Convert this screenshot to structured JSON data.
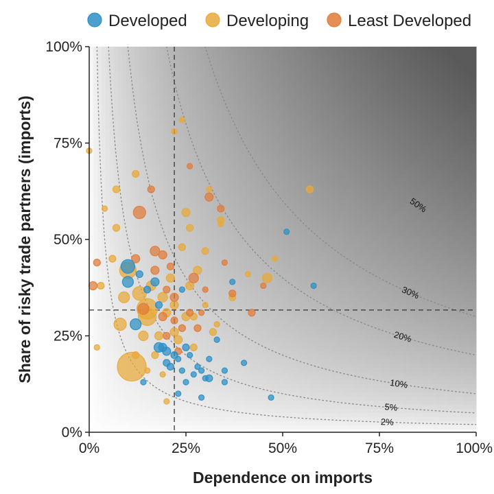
{
  "chart_data": {
    "type": "scatter",
    "xlabel": "Dependence on imports",
    "ylabel": "Share of risky trade partners (imports)",
    "xlim": [
      0,
      1
    ],
    "ylim": [
      0,
      1
    ],
    "x_ticks": [
      {
        "value": 0,
        "label": "0%"
      },
      {
        "value": 0.25,
        "label": "25%"
      },
      {
        "value": 0.5,
        "label": "50%"
      },
      {
        "value": 0.75,
        "label": "75%"
      },
      {
        "value": 1,
        "label": "100%"
      }
    ],
    "y_ticks": [
      {
        "value": 0,
        "label": "0%"
      },
      {
        "value": 0.25,
        "label": "25%"
      },
      {
        "value": 0.5,
        "label": "50%"
      },
      {
        "value": 0.75,
        "label": "75%"
      },
      {
        "value": 1,
        "label": "100%"
      }
    ],
    "legend_position": "top",
    "grid": false,
    "background": "gradient shading increasing with x × y product",
    "reference_lines": {
      "vertical_x": 0.22,
      "horizontal_y": 0.317,
      "style": "dashed"
    },
    "contours": [
      {
        "level": 0.02,
        "label": "2%"
      },
      {
        "level": 0.05,
        "label": "5%"
      },
      {
        "level": 0.1,
        "label": "10%"
      },
      {
        "level": 0.2,
        "label": "20%"
      },
      {
        "level": 0.3,
        "label": "30%"
      },
      {
        "level": 0.5,
        "label": "50%"
      }
    ],
    "series": [
      {
        "name": "Developed",
        "color": "#2b8fc6",
        "points": [
          {
            "x": 0.1,
            "y": 0.43,
            "size": 10
          },
          {
            "x": 0.1,
            "y": 0.39,
            "size": 8
          },
          {
            "x": 0.12,
            "y": 0.28,
            "size": 8
          },
          {
            "x": 0.13,
            "y": 0.41,
            "size": 5
          },
          {
            "x": 0.14,
            "y": 0.13,
            "size": 4
          },
          {
            "x": 0.15,
            "y": 0.37,
            "size": 5
          },
          {
            "x": 0.17,
            "y": 0.39,
            "size": 6
          },
          {
            "x": 0.18,
            "y": 0.22,
            "size": 7
          },
          {
            "x": 0.19,
            "y": 0.22,
            "size": 6
          },
          {
            "x": 0.2,
            "y": 0.21,
            "size": 6
          },
          {
            "x": 0.2,
            "y": 0.18,
            "size": 5
          },
          {
            "x": 0.21,
            "y": 0.17,
            "size": 5
          },
          {
            "x": 0.22,
            "y": 0.2,
            "size": 5
          },
          {
            "x": 0.23,
            "y": 0.19,
            "size": 4
          },
          {
            "x": 0.24,
            "y": 0.16,
            "size": 4
          },
          {
            "x": 0.25,
            "y": 0.22,
            "size": 5
          },
          {
            "x": 0.25,
            "y": 0.13,
            "size": 4
          },
          {
            "x": 0.26,
            "y": 0.2,
            "size": 4
          },
          {
            "x": 0.27,
            "y": 0.15,
            "size": 4
          },
          {
            "x": 0.28,
            "y": 0.17,
            "size": 4
          },
          {
            "x": 0.29,
            "y": 0.16,
            "size": 4
          },
          {
            "x": 0.3,
            "y": 0.14,
            "size": 4
          },
          {
            "x": 0.31,
            "y": 0.14,
            "size": 5
          },
          {
            "x": 0.31,
            "y": 0.19,
            "size": 4
          },
          {
            "x": 0.33,
            "y": 0.24,
            "size": 4
          },
          {
            "x": 0.35,
            "y": 0.16,
            "size": 4
          },
          {
            "x": 0.35,
            "y": 0.13,
            "size": 4
          },
          {
            "x": 0.4,
            "y": 0.18,
            "size": 4
          },
          {
            "x": 0.23,
            "y": 0.1,
            "size": 4
          },
          {
            "x": 0.29,
            "y": 0.09,
            "size": 4
          },
          {
            "x": 0.47,
            "y": 0.09,
            "size": 4
          },
          {
            "x": 0.51,
            "y": 0.52,
            "size": 4
          },
          {
            "x": 0.58,
            "y": 0.38,
            "size": 4
          },
          {
            "x": 0.37,
            "y": 0.39,
            "size": 4
          },
          {
            "x": 0.24,
            "y": 0.37,
            "size": 4
          },
          {
            "x": 0.18,
            "y": 0.33,
            "size": 5
          }
        ]
      },
      {
        "name": "Developing",
        "color": "#e8a93a",
        "points": [
          {
            "x": 0.11,
            "y": 0.17,
            "size": 21
          },
          {
            "x": 0.15,
            "y": 0.32,
            "size": 15
          },
          {
            "x": 0.15,
            "y": 0.3,
            "size": 13
          },
          {
            "x": 0.1,
            "y": 0.42,
            "size": 12
          },
          {
            "x": 0.13,
            "y": 0.36,
            "size": 10
          },
          {
            "x": 0.09,
            "y": 0.35,
            "size": 8
          },
          {
            "x": 0.08,
            "y": 0.28,
            "size": 9
          },
          {
            "x": 0.14,
            "y": 0.25,
            "size": 7
          },
          {
            "x": 0.16,
            "y": 0.38,
            "size": 7
          },
          {
            "x": 0.19,
            "y": 0.35,
            "size": 7
          },
          {
            "x": 0.2,
            "y": 0.31,
            "size": 6
          },
          {
            "x": 0.18,
            "y": 0.25,
            "size": 6
          },
          {
            "x": 0.22,
            "y": 0.26,
            "size": 6
          },
          {
            "x": 0.25,
            "y": 0.3,
            "size": 6
          },
          {
            "x": 0.26,
            "y": 0.38,
            "size": 6
          },
          {
            "x": 0.28,
            "y": 0.42,
            "size": 6
          },
          {
            "x": 0.24,
            "y": 0.48,
            "size": 5
          },
          {
            "x": 0.25,
            "y": 0.57,
            "size": 6
          },
          {
            "x": 0.26,
            "y": 0.53,
            "size": 5
          },
          {
            "x": 0.3,
            "y": 0.47,
            "size": 5
          },
          {
            "x": 0.27,
            "y": 0.22,
            "size": 5
          },
          {
            "x": 0.23,
            "y": 0.24,
            "size": 6
          },
          {
            "x": 0.21,
            "y": 0.4,
            "size": 6
          },
          {
            "x": 0.07,
            "y": 0.63,
            "size": 5
          },
          {
            "x": 0.12,
            "y": 0.67,
            "size": 5
          },
          {
            "x": 0.04,
            "y": 0.58,
            "size": 4
          },
          {
            "x": 0.07,
            "y": 0.53,
            "size": 5
          },
          {
            "x": 0.06,
            "y": 0.45,
            "size": 5
          },
          {
            "x": 0.03,
            "y": 0.38,
            "size": 5
          },
          {
            "x": 0.0,
            "y": 0.73,
            "size": 4
          },
          {
            "x": 0.22,
            "y": 0.78,
            "size": 4
          },
          {
            "x": 0.24,
            "y": 0.81,
            "size": 4
          },
          {
            "x": 0.31,
            "y": 0.63,
            "size": 4
          },
          {
            "x": 0.34,
            "y": 0.55,
            "size": 5
          },
          {
            "x": 0.34,
            "y": 0.54,
            "size": 4
          },
          {
            "x": 0.41,
            "y": 0.41,
            "size": 4
          },
          {
            "x": 0.46,
            "y": 0.4,
            "size": 7
          },
          {
            "x": 0.48,
            "y": 0.45,
            "size": 4
          },
          {
            "x": 0.57,
            "y": 0.63,
            "size": 5
          },
          {
            "x": 0.37,
            "y": 0.35,
            "size": 5
          },
          {
            "x": 0.33,
            "y": 0.28,
            "size": 4
          },
          {
            "x": 0.3,
            "y": 0.33,
            "size": 4
          },
          {
            "x": 0.2,
            "y": 0.08,
            "size": 4
          },
          {
            "x": 0.19,
            "y": 0.15,
            "size": 4
          },
          {
            "x": 0.17,
            "y": 0.2,
            "size": 5
          },
          {
            "x": 0.15,
            "y": 0.16,
            "size": 4
          },
          {
            "x": 0.02,
            "y": 0.22,
            "size": 4
          },
          {
            "x": 0.12,
            "y": 0.2,
            "size": 5
          },
          {
            "x": 0.32,
            "y": 0.26,
            "size": 5
          },
          {
            "x": 0.27,
            "y": 0.3,
            "size": 5
          },
          {
            "x": 0.22,
            "y": 0.33,
            "size": 6
          }
        ]
      },
      {
        "name": "Least Developed",
        "color": "#e07b39",
        "points": [
          {
            "x": 0.13,
            "y": 0.57,
            "size": 9
          },
          {
            "x": 0.17,
            "y": 0.47,
            "size": 7
          },
          {
            "x": 0.16,
            "y": 0.63,
            "size": 5
          },
          {
            "x": 0.17,
            "y": 0.42,
            "size": 6
          },
          {
            "x": 0.19,
            "y": 0.46,
            "size": 6
          },
          {
            "x": 0.21,
            "y": 0.43,
            "size": 5
          },
          {
            "x": 0.2,
            "y": 0.37,
            "size": 5
          },
          {
            "x": 0.22,
            "y": 0.35,
            "size": 6
          },
          {
            "x": 0.19,
            "y": 0.3,
            "size": 6
          },
          {
            "x": 0.2,
            "y": 0.25,
            "size": 5
          },
          {
            "x": 0.22,
            "y": 0.29,
            "size": 5
          },
          {
            "x": 0.24,
            "y": 0.27,
            "size": 5
          },
          {
            "x": 0.26,
            "y": 0.31,
            "size": 5
          },
          {
            "x": 0.27,
            "y": 0.4,
            "size": 7
          },
          {
            "x": 0.23,
            "y": 0.21,
            "size": 5
          },
          {
            "x": 0.26,
            "y": 0.69,
            "size": 4
          },
          {
            "x": 0.31,
            "y": 0.61,
            "size": 6
          },
          {
            "x": 0.34,
            "y": 0.58,
            "size": 5
          },
          {
            "x": 0.35,
            "y": 0.44,
            "size": 4
          },
          {
            "x": 0.37,
            "y": 0.36,
            "size": 5
          },
          {
            "x": 0.42,
            "y": 0.31,
            "size": 5
          },
          {
            "x": 0.45,
            "y": 0.38,
            "size": 4
          },
          {
            "x": 0.14,
            "y": 0.32,
            "size": 8
          },
          {
            "x": 0.12,
            "y": 0.45,
            "size": 6
          },
          {
            "x": 0.01,
            "y": 0.38,
            "size": 6
          },
          {
            "x": 0.02,
            "y": 0.44,
            "size": 5
          },
          {
            "x": 0.28,
            "y": 0.27,
            "size": 5
          },
          {
            "x": 0.3,
            "y": 0.37,
            "size": 4
          },
          {
            "x": 0.29,
            "y": 0.31,
            "size": 4
          }
        ]
      }
    ]
  }
}
